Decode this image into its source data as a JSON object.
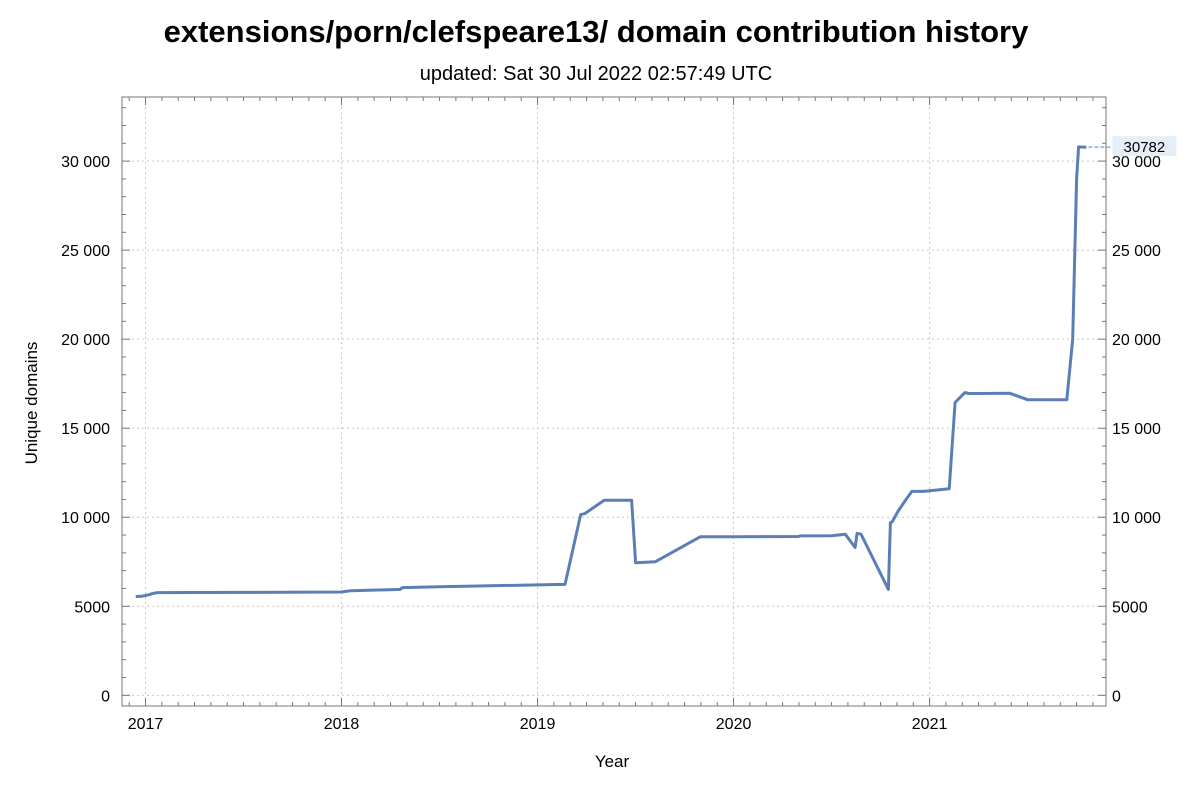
{
  "title": "extensions/porn/clefspeare13/ domain contribution history",
  "subtitle": "updated: Sat 30 Jul 2022 02:57:49 UTC",
  "chart_data": {
    "type": "line",
    "xlabel": "Year",
    "ylabel": "Unique domains",
    "xlim": [
      2016.88,
      2021.9
    ],
    "ylim": [
      -600,
      33600
    ],
    "x_ticks": [
      2017,
      2018,
      2019,
      2020,
      2021
    ],
    "x_tick_labels": [
      "2017",
      "2018",
      "2019",
      "2020",
      "2021"
    ],
    "y_ticks": [
      0,
      5000,
      10000,
      15000,
      20000,
      25000,
      30000
    ],
    "y_tick_labels": [
      "0",
      "5000",
      "10 000",
      "15 000",
      "20 000",
      "25 000",
      "30 000"
    ],
    "grid": true,
    "last_value_label": "30782",
    "series": [
      {
        "color": "#5b7fb5",
        "x": [
          2016.95,
          2016.98,
          2017.02,
          2017.03,
          2017.06,
          2017.5,
          2018.0,
          2018.03,
          2018.05,
          2018.3,
          2018.31,
          2018.5,
          2019.0,
          2019.14,
          2019.22,
          2019.24,
          2019.34,
          2019.48,
          2019.5,
          2019.6,
          2019.83,
          2020.0,
          2020.33,
          2020.34,
          2020.5,
          2020.57,
          2020.62,
          2020.63,
          2020.65,
          2020.79,
          2020.8,
          2020.81,
          2020.84,
          2020.88,
          2020.91,
          2020.97,
          2021.1,
          2021.13,
          2021.18,
          2021.2,
          2021.27,
          2021.41,
          2021.5,
          2021.7,
          2021.73,
          2021.75,
          2021.76,
          2021.8
        ],
        "y": [
          5550,
          5560,
          5650,
          5700,
          5770,
          5780,
          5800,
          5850,
          5870,
          5950,
          6050,
          6100,
          6200,
          6230,
          10150,
          10200,
          10950,
          10950,
          7450,
          7500,
          8900,
          8900,
          8920,
          8950,
          8960,
          9050,
          8300,
          9100,
          9050,
          5950,
          9700,
          9750,
          10350,
          11000,
          11450,
          11450,
          11600,
          16450,
          17000,
          16950,
          16950,
          16960,
          16600,
          16600,
          20000,
          29000,
          30800,
          30782
        ]
      }
    ]
  }
}
